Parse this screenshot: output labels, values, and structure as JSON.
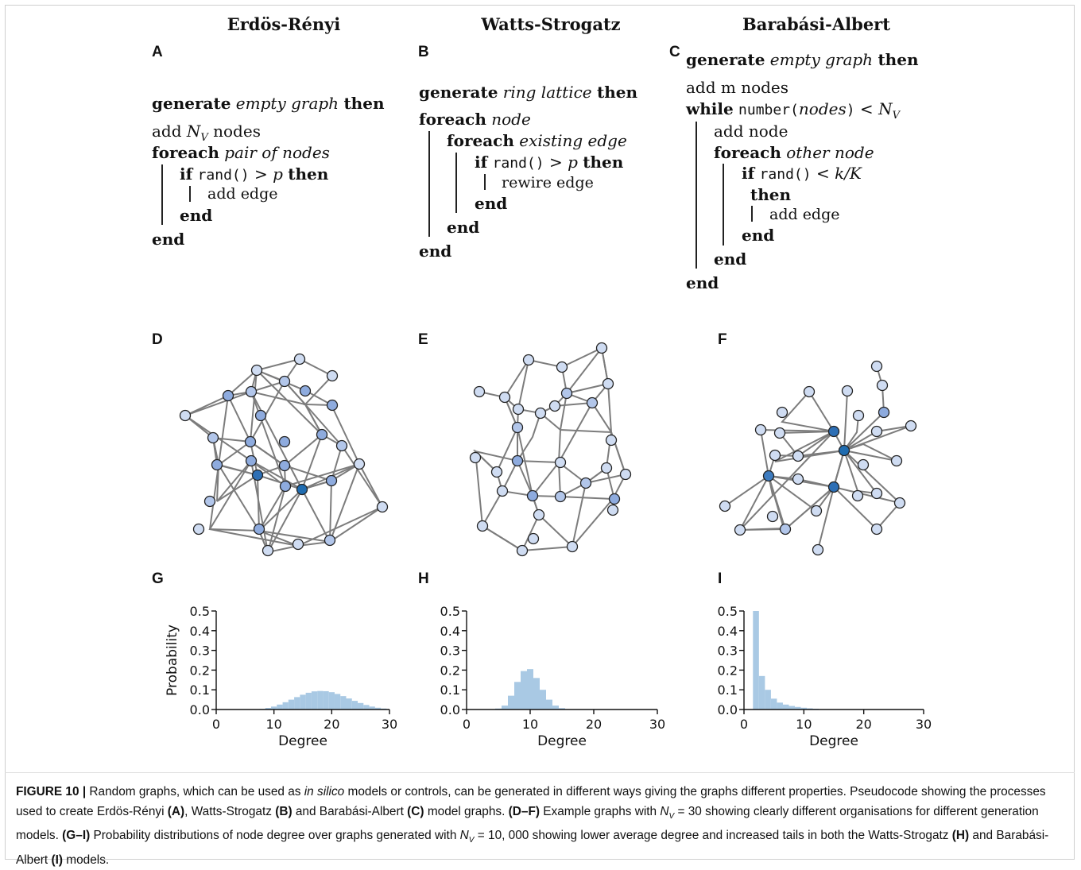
{
  "titles": {
    "a": "Erdös-Rényi",
    "b": "Watts-Strogatz",
    "c": "Barabási-Albert"
  },
  "panels": [
    "A",
    "B",
    "C",
    "D",
    "E",
    "F",
    "G",
    "H",
    "I"
  ],
  "pseudocode": {
    "a": {
      "l1_kw": "generate",
      "l1_it": "empty graph",
      "l1_kw2": "then",
      "l2_pre": "add ",
      "l2_var": "N",
      "l2_sub": "V",
      "l2_post": " nodes",
      "l3_kw": "foreach",
      "l3_it": "pair of nodes",
      "l4_kw": "if",
      "l4_fn": "rand()",
      "l4_op": " > ",
      "l4_var": "p",
      "l4_kw2": "then",
      "l5": "add edge",
      "l6": "end",
      "l7": "end"
    },
    "b": {
      "l1_kw": "generate",
      "l1_it": "ring lattice",
      "l1_kw2": "then",
      "l2_kw": "foreach",
      "l2_it": "node",
      "l3_kw": "foreach",
      "l3_it": "existing edge",
      "l4_kw": "if",
      "l4_fn": "rand()",
      "l4_op": " > ",
      "l4_var": "p",
      "l4_kw2": "then",
      "l5": "rewire edge",
      "l6": "end",
      "l7": "end",
      "l8": "end"
    },
    "c": {
      "l1_kw": "generate",
      "l1_it": "empty graph",
      "l1_kw2": "then",
      "l2": "add m nodes",
      "l3_kw": "while",
      "l3_fn": "number(",
      "l3_it": "nodes",
      "l3_fn2": ")",
      "l3_op": " < ",
      "l3_var": "N",
      "l3_sub": "V",
      "l4": "add node",
      "l5_kw": "foreach",
      "l5_it": "other node",
      "l6_kw": "if",
      "l6_fn": "rand()",
      "l6_op": " < ",
      "l6_var": "k/K",
      "l7_kw": "then",
      "l8": "add edge",
      "l9": "end",
      "l10": "end",
      "l11": "end"
    }
  },
  "chart_data": [
    {
      "type": "bar",
      "panel": "G",
      "xlabel": "Degree",
      "ylabel": "Probability",
      "xlim": [
        0,
        30
      ],
      "ylim": [
        0,
        0.5
      ],
      "xticks": [
        "0",
        "10",
        "20",
        "30"
      ],
      "yticks": [
        "0.0",
        "0.1",
        "0.2",
        "0.3",
        "0.4",
        "0.5"
      ],
      "x": [
        8,
        9,
        10,
        11,
        12,
        13,
        14,
        15,
        16,
        17,
        18,
        19,
        20,
        21,
        22,
        23,
        24,
        25,
        26,
        27,
        28,
        29
      ],
      "values": [
        0.003,
        0.008,
        0.015,
        0.025,
        0.037,
        0.05,
        0.063,
        0.075,
        0.085,
        0.092,
        0.094,
        0.093,
        0.088,
        0.079,
        0.068,
        0.056,
        0.044,
        0.033,
        0.023,
        0.015,
        0.009,
        0.005
      ]
    },
    {
      "type": "bar",
      "panel": "H",
      "xlabel": "Degree",
      "ylabel": "",
      "xlim": [
        0,
        30
      ],
      "ylim": [
        0,
        0.5
      ],
      "xticks": [
        "0",
        "10",
        "20",
        "30"
      ],
      "yticks": [
        "0.0",
        "0.1",
        "0.2",
        "0.3",
        "0.4",
        "0.5"
      ],
      "x": [
        5,
        6,
        7,
        8,
        9,
        10,
        11,
        12,
        13,
        14,
        15,
        16
      ],
      "values": [
        0.005,
        0.02,
        0.07,
        0.14,
        0.195,
        0.205,
        0.16,
        0.1,
        0.05,
        0.02,
        0.007,
        0.002
      ]
    },
    {
      "type": "bar",
      "panel": "I",
      "xlabel": "Degree",
      "ylabel": "",
      "xlim": [
        0,
        30
      ],
      "ylim": [
        0,
        0.5
      ],
      "xticks": [
        "0",
        "10",
        "20",
        "30"
      ],
      "yticks": [
        "0.0",
        "0.1",
        "0.2",
        "0.3",
        "0.4",
        "0.5"
      ],
      "x": [
        2,
        3,
        4,
        5,
        6,
        7,
        8,
        9,
        10,
        11,
        12
      ],
      "values": [
        0.5,
        0.17,
        0.1,
        0.055,
        0.035,
        0.025,
        0.018,
        0.013,
        0.009,
        0.006,
        0.004
      ]
    }
  ],
  "colors": {
    "bar": "#a9c9e4",
    "node_low": "#cfdcf2",
    "node_mid": "#8eabde",
    "node_high": "#5a86c9",
    "node_hub": "#1f6cb0",
    "edge": "#666666"
  },
  "caption": {
    "fig": "FIGURE 10 |",
    "t1": " Random graphs, which can be used as ",
    "t1_it": "in silico",
    "t2": " models or controls, can be generated in different ways giving the graphs different properties. Pseudocode showing the processes used to create Erdös-Rényi ",
    "t2_a": "(A)",
    "t3": ", Watts-Strogatz ",
    "t3_b": "(B)",
    "t4": " and Barabási-Albert ",
    "t4_c": "(C)",
    "t5": " model graphs. ",
    "t5_df": "(D–F)",
    "t6": " Example graphs with ",
    "t6_math": "N",
    "t6_sub": "V",
    "t6_eq": " = 30",
    "t7": " showing clearly different organisations for different generation models. ",
    "t7_gi": "(G–I)",
    "t8": " Probability distributions of node degree over graphs generated with ",
    "t8_math": "N",
    "t8_sub": "V",
    "t8_eq": " = 10, 000",
    "t9": " showing lower average degree and increased tails in both the Watts-Strogatz ",
    "t9_h": "(H)",
    "t10": " and Barabási-Albert ",
    "t10_i": "(I)",
    "t11": " models."
  }
}
